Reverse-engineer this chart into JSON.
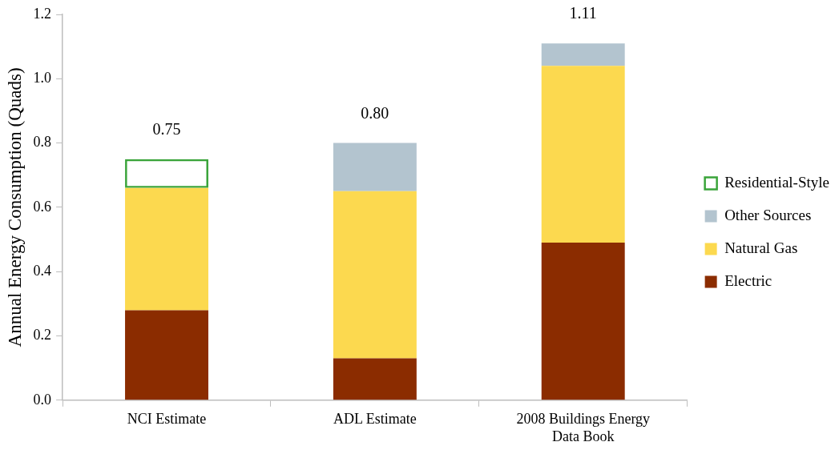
{
  "chart_data": {
    "type": "bar",
    "stacked": true,
    "ylabel": "Annual Energy Consumption (Quads)",
    "categories": [
      "NCI Estimate",
      "ADL Estimate",
      "2008 Buildings Energy Data Book"
    ],
    "series": [
      {
        "name": "Electric",
        "color": "#8b2c00",
        "values": [
          0.28,
          0.13,
          0.49
        ]
      },
      {
        "name": "Natural Gas",
        "color": "#fcd94f",
        "values": [
          0.38,
          0.52,
          0.55
        ]
      },
      {
        "name": "Other Sources",
        "color": "#b3c4cf",
        "values": [
          null,
          0.15,
          0.07
        ]
      },
      {
        "name": "Residential-Style",
        "color": "#3aa43a",
        "line_style": "dashed",
        "values": [
          0.09,
          null,
          null
        ]
      }
    ],
    "totals": [
      "0.75",
      "0.80",
      "1.11"
    ],
    "ylim": [
      0,
      1.2
    ],
    "yticks": [
      {
        "value": 0,
        "label": "0.0"
      },
      {
        "value": 0.2,
        "label": "0.2"
      },
      {
        "value": 0.4,
        "label": "0.4"
      },
      {
        "value": 0.6,
        "label": "0.6"
      },
      {
        "value": 0.8,
        "label": "0.8"
      },
      {
        "value": 1,
        "label": "1.0"
      },
      {
        "value": 1.2,
        "label": "1.2"
      }
    ],
    "grid": false,
    "legend": "right"
  }
}
